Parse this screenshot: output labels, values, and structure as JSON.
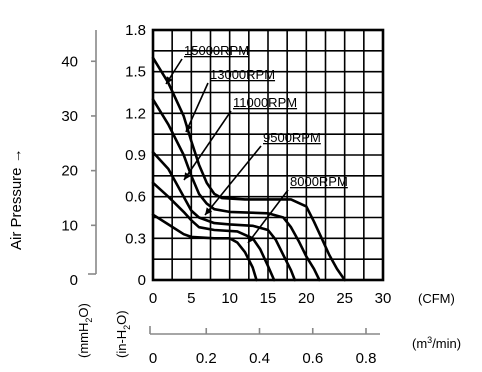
{
  "chart_data": {
    "type": "line",
    "ylabel": "Air Pressure →",
    "x": {
      "cfm_ticks": [
        "0",
        "5",
        "10",
        "15",
        "20",
        "25",
        "30"
      ],
      "cfm_unit": "(CFM)",
      "m3_ticks": [
        "0",
        "0.2",
        "0.4",
        "0.6",
        "0.8"
      ],
      "m3_unit": "(m³/min)",
      "m3_unit_base": "(m",
      "m3_unit_sup": "3",
      "m3_unit_tail": "/min)",
      "xlim": [
        0,
        30
      ]
    },
    "y": {
      "inh2o_ticks": [
        "0",
        "0.3",
        "0.6",
        "0.9",
        "1.2",
        "1.5",
        "1.8"
      ],
      "inh2o_unit": "(in-H₂O)",
      "inh2o_unit_base": "(in-H",
      "inh2o_unit_sub": "2",
      "inh2o_unit_tail": "O)",
      "mmh2o_ticks": [
        "0",
        "10",
        "20",
        "30",
        "40"
      ],
      "mmh2o_unit": "(mmH₂O)",
      "mmh2o_unit_base": "(mmH",
      "mmh2o_unit_sub": "2",
      "mmh2o_unit_tail": "O)",
      "ylim": [
        0,
        1.8
      ]
    },
    "series": [
      {
        "name": "15000RPM",
        "points": [
          [
            0,
            1.6
          ],
          [
            2,
            1.42
          ],
          [
            4,
            1.18
          ],
          [
            5,
            1.0
          ],
          [
            6,
            0.83
          ],
          [
            7,
            0.7
          ],
          [
            8,
            0.62
          ],
          [
            9,
            0.59
          ],
          [
            12,
            0.58
          ],
          [
            18,
            0.58
          ],
          [
            20,
            0.53
          ],
          [
            21,
            0.42
          ],
          [
            22,
            0.3
          ],
          [
            23,
            0.18
          ],
          [
            24,
            0.08
          ],
          [
            25,
            0
          ]
        ]
      },
      {
        "name": "13000RPM",
        "points": [
          [
            0,
            1.3
          ],
          [
            2,
            1.12
          ],
          [
            4,
            0.9
          ],
          [
            5,
            0.75
          ],
          [
            6,
            0.62
          ],
          [
            7,
            0.55
          ],
          [
            8,
            0.51
          ],
          [
            10,
            0.49
          ],
          [
            15,
            0.48
          ],
          [
            17,
            0.45
          ],
          [
            18,
            0.38
          ],
          [
            19,
            0.28
          ],
          [
            20,
            0.17
          ],
          [
            21,
            0.08
          ],
          [
            21.7,
            0
          ]
        ]
      },
      {
        "name": "11000RPM",
        "points": [
          [
            0,
            0.92
          ],
          [
            2,
            0.8
          ],
          [
            3,
            0.7
          ],
          [
            4,
            0.6
          ],
          [
            5,
            0.5
          ],
          [
            6,
            0.45
          ],
          [
            8,
            0.41
          ],
          [
            10,
            0.4
          ],
          [
            13,
            0.39
          ],
          [
            15,
            0.36
          ],
          [
            16,
            0.29
          ],
          [
            17,
            0.18
          ],
          [
            18,
            0.07
          ],
          [
            18.5,
            0
          ]
        ]
      },
      {
        "name": "9500RPM",
        "points": [
          [
            0,
            0.7
          ],
          [
            2,
            0.6
          ],
          [
            4,
            0.49
          ],
          [
            5,
            0.43
          ],
          [
            6,
            0.38
          ],
          [
            8,
            0.36
          ],
          [
            11,
            0.35
          ],
          [
            13,
            0.3
          ],
          [
            14,
            0.22
          ],
          [
            15,
            0.1
          ],
          [
            15.8,
            0
          ]
        ]
      },
      {
        "name": "8000RPM",
        "points": [
          [
            0,
            0.47
          ],
          [
            2,
            0.4
          ],
          [
            4,
            0.33
          ],
          [
            5,
            0.31
          ],
          [
            8,
            0.3
          ],
          [
            10,
            0.3
          ],
          [
            11,
            0.27
          ],
          [
            12,
            0.2
          ],
          [
            13,
            0.09
          ],
          [
            13.5,
            0
          ]
        ]
      }
    ],
    "labels": [
      {
        "series": "15000RPM",
        "text": "15000RPM"
      },
      {
        "series": "13000RPM",
        "text": "13000RPM"
      },
      {
        "series": "11000RPM",
        "text": "11000RPM"
      },
      {
        "series": "9500RPM",
        "text": "9500RPM"
      },
      {
        "series": "8000RPM",
        "text": "8000RPM"
      }
    ],
    "grid": true
  }
}
